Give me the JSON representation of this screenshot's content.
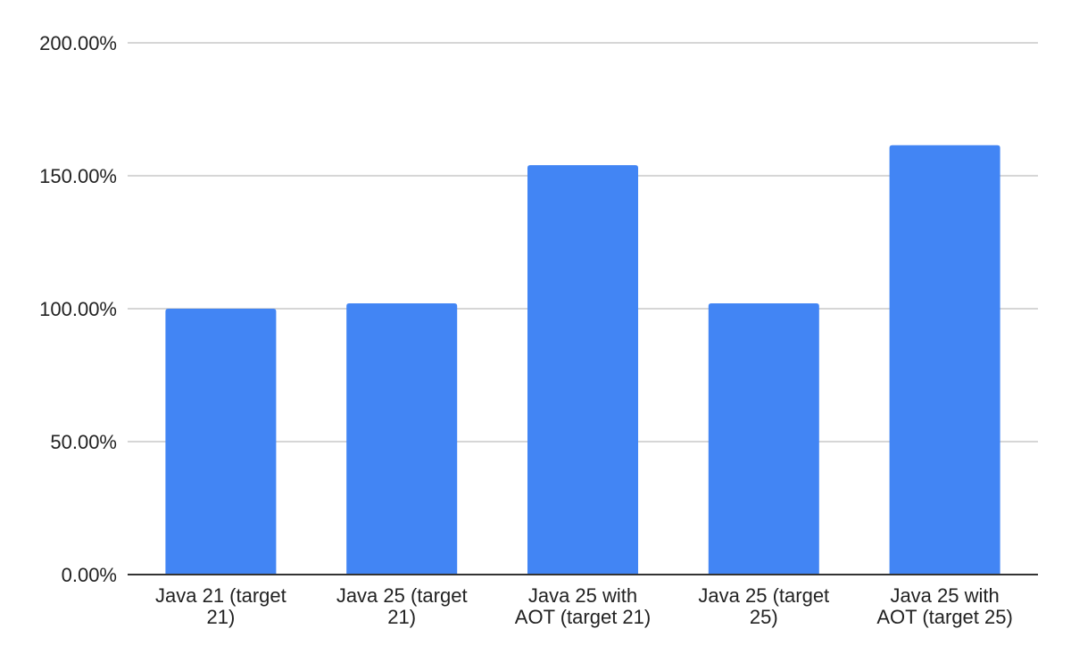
{
  "chart_data": {
    "type": "bar",
    "title": "",
    "xlabel": "",
    "ylabel": "",
    "categories": [
      [
        "Java 21 (target",
        "21)"
      ],
      [
        "Java 25 (target",
        "21)"
      ],
      [
        "Java 25 with",
        "AOT (target 21)"
      ],
      [
        "Java 25 (target",
        "25)"
      ],
      [
        "Java 25 with",
        "AOT (target 25)"
      ]
    ],
    "values": [
      100.0,
      102.0,
      154.0,
      102.0,
      161.5
    ],
    "ylim": [
      0,
      200
    ],
    "yticks": [
      0,
      50,
      100,
      150,
      200
    ],
    "ytick_labels": [
      "0.00%",
      "50.00%",
      "100.00%",
      "150.00%",
      "200.00%"
    ],
    "grid": true,
    "legend": "none",
    "bar_color": "#4285f4"
  }
}
